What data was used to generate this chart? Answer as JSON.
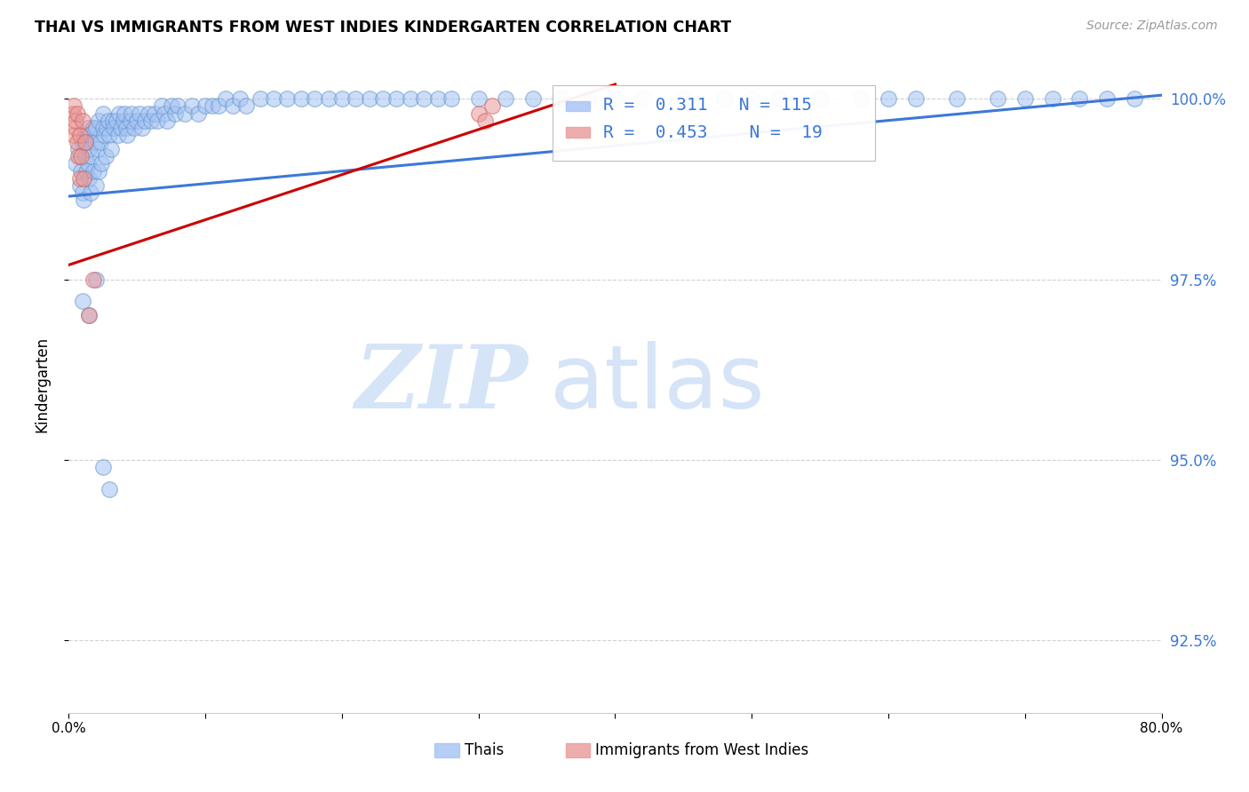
{
  "title": "THAI VS IMMIGRANTS FROM WEST INDIES KINDERGARTEN CORRELATION CHART",
  "source": "Source: ZipAtlas.com",
  "ylabel": "Kindergarten",
  "ytick_labels": [
    "100.0%",
    "97.5%",
    "95.0%",
    "92.5%"
  ],
  "ytick_values": [
    1.0,
    0.975,
    0.95,
    0.925
  ],
  "xmin": 0.0,
  "xmax": 0.8,
  "ymin": 0.915,
  "ymax": 1.006,
  "legend_r_blue": "0.311",
  "legend_n_blue": "115",
  "legend_r_pink": "0.453",
  "legend_n_pink": "19",
  "legend_label_blue": "Thais",
  "legend_label_pink": "Immigrants from West Indies",
  "blue_color": "#a4c2f4",
  "pink_color": "#ea9999",
  "trendline_blue_color": "#3c78d8",
  "trendline_pink_color": "#cc0000",
  "watermark_zip": "ZIP",
  "watermark_atlas": "atlas",
  "watermark_color": "#d6e4f7",
  "blue_x": [
    0.005,
    0.007,
    0.008,
    0.009,
    0.01,
    0.01,
    0.011,
    0.012,
    0.012,
    0.013,
    0.013,
    0.014,
    0.014,
    0.015,
    0.015,
    0.016,
    0.016,
    0.017,
    0.018,
    0.018,
    0.019,
    0.02,
    0.02,
    0.021,
    0.022,
    0.022,
    0.023,
    0.024,
    0.025,
    0.025,
    0.026,
    0.027,
    0.028,
    0.029,
    0.03,
    0.031,
    0.032,
    0.033,
    0.035,
    0.036,
    0.037,
    0.038,
    0.04,
    0.041,
    0.042,
    0.043,
    0.045,
    0.046,
    0.048,
    0.05,
    0.052,
    0.054,
    0.056,
    0.058,
    0.06,
    0.063,
    0.065,
    0.068,
    0.07,
    0.072,
    0.075,
    0.078,
    0.08,
    0.085,
    0.09,
    0.095,
    0.1,
    0.105,
    0.11,
    0.115,
    0.12,
    0.125,
    0.13,
    0.14,
    0.15,
    0.16,
    0.17,
    0.18,
    0.19,
    0.2,
    0.21,
    0.22,
    0.23,
    0.24,
    0.25,
    0.26,
    0.27,
    0.28,
    0.3,
    0.32,
    0.34,
    0.36,
    0.38,
    0.4,
    0.42,
    0.45,
    0.48,
    0.5,
    0.52,
    0.55,
    0.58,
    0.6,
    0.62,
    0.65,
    0.68,
    0.7,
    0.72,
    0.74,
    0.76,
    0.78,
    0.01,
    0.015,
    0.02,
    0.025,
    0.03
  ],
  "blue_y": [
    0.991,
    0.993,
    0.988,
    0.99,
    0.987,
    0.994,
    0.986,
    0.992,
    0.995,
    0.99,
    0.994,
    0.991,
    0.996,
    0.989,
    0.993,
    0.987,
    0.995,
    0.992,
    0.99,
    0.996,
    0.994,
    0.988,
    0.996,
    0.993,
    0.99,
    0.997,
    0.994,
    0.991,
    0.996,
    0.998,
    0.995,
    0.992,
    0.996,
    0.997,
    0.995,
    0.993,
    0.997,
    0.996,
    0.997,
    0.995,
    0.998,
    0.996,
    0.997,
    0.998,
    0.996,
    0.995,
    0.997,
    0.998,
    0.996,
    0.997,
    0.998,
    0.996,
    0.997,
    0.998,
    0.997,
    0.998,
    0.997,
    0.999,
    0.998,
    0.997,
    0.999,
    0.998,
    0.999,
    0.998,
    0.999,
    0.998,
    0.999,
    0.999,
    0.999,
    1.0,
    0.999,
    1.0,
    0.999,
    1.0,
    1.0,
    1.0,
    1.0,
    1.0,
    1.0,
    1.0,
    1.0,
    1.0,
    1.0,
    1.0,
    1.0,
    1.0,
    1.0,
    1.0,
    1.0,
    1.0,
    1.0,
    1.0,
    1.0,
    1.0,
    1.0,
    1.0,
    1.0,
    1.0,
    1.0,
    1.0,
    1.0,
    1.0,
    1.0,
    1.0,
    1.0,
    1.0,
    1.0,
    1.0,
    1.0,
    1.0,
    0.972,
    0.97,
    0.975,
    0.949,
    0.946
  ],
  "pink_x": [
    0.003,
    0.004,
    0.004,
    0.005,
    0.005,
    0.006,
    0.006,
    0.007,
    0.008,
    0.008,
    0.009,
    0.01,
    0.011,
    0.012,
    0.015,
    0.018,
    0.3,
    0.305,
    0.31
  ],
  "pink_y": [
    0.998,
    0.995,
    0.999,
    0.996,
    0.997,
    0.994,
    0.998,
    0.992,
    0.995,
    0.989,
    0.992,
    0.997,
    0.989,
    0.994,
    0.97,
    0.975,
    0.998,
    0.997,
    0.999
  ],
  "blue_trendline_x0": 0.0,
  "blue_trendline_y0": 0.9865,
  "blue_trendline_x1": 0.8,
  "blue_trendline_y1": 1.0005,
  "pink_trendline_x0": 0.0,
  "pink_trendline_y0": 0.977,
  "pink_trendline_x1": 0.4,
  "pink_trendline_y1": 1.002
}
